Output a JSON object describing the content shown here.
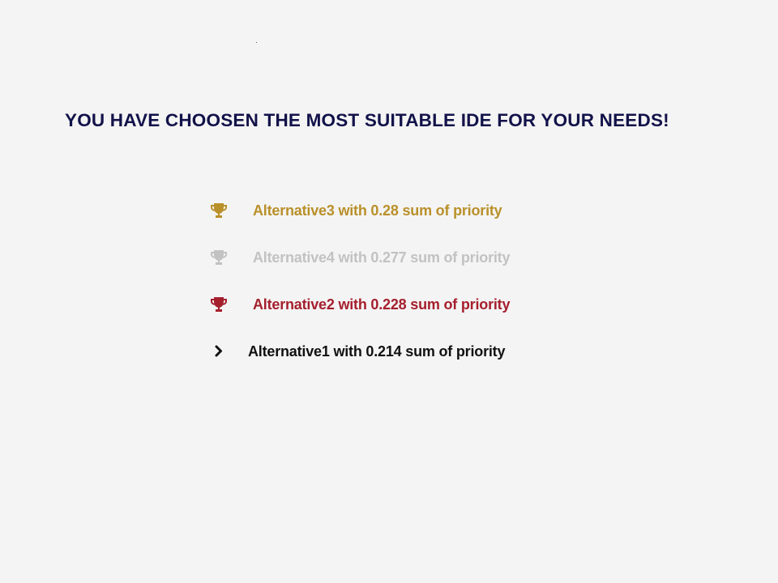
{
  "header": {
    "title": "YOU HAVE CHOOSEN THE MOST SUITABLE IDE FOR YOUR NEEDS!"
  },
  "results": [
    {
      "text": "Alternative3 with 0.28 sum of priority",
      "icon": "trophy-icon",
      "color": "#b9902a"
    },
    {
      "text": "Alternative4 with 0.277 sum of priority",
      "icon": "trophy-icon",
      "color": "#c2c2c2"
    },
    {
      "text": "Alternative2 with 0.228 sum of priority",
      "icon": "trophy-icon",
      "color": "#a51f2d"
    },
    {
      "text": "Alternative1 with 0.214 sum of priority",
      "icon": "chevron-right-icon",
      "color": "#111111"
    }
  ],
  "colors": {
    "background": "#f4f4f4",
    "title": "#12124a"
  }
}
